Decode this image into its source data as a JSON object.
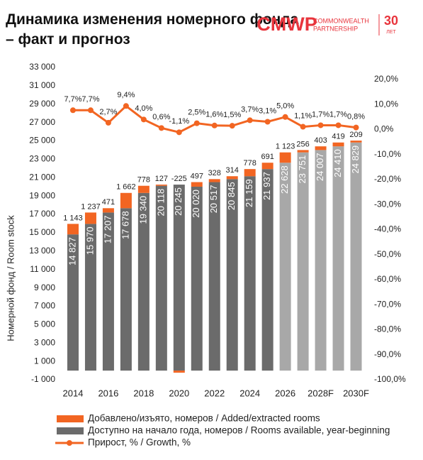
{
  "logo": {
    "mark": "CMWP",
    "line1": "COMMONWEALTH",
    "line2": "PARTNERSHIP",
    "years": "30",
    "years_word": "ЛЕТ"
  },
  "chart_data": {
    "type": "bar-line",
    "title": "Динамика изменения номерного фонда – факт и прогноз",
    "y_label": "Номерной фонд / Room stock",
    "categories": [
      "2014",
      null,
      "2016",
      null,
      "2018",
      null,
      "2020",
      null,
      "2022",
      null,
      "2024",
      null,
      "2026",
      null,
      "2028F",
      null,
      "2030F"
    ],
    "series": [
      {
        "name": "Доступно на начало года, номеров / Rooms available, year-beginning",
        "color": "#6b6b6b",
        "colors": [
          "#6b6b6b",
          "#6b6b6b",
          "#6b6b6b",
          "#6b6b6b",
          "#6b6b6b",
          "#6b6b6b",
          "#6b6b6b",
          "#6b6b6b",
          "#6b6b6b",
          "#6b6b6b",
          "#6b6b6b",
          "#6b6b6b",
          "#a8a8a8",
          "#a8a8a8",
          "#a8a8a8",
          "#a8a8a8",
          "#a8a8a8"
        ],
        "values": [
          14827,
          15970,
          17207,
          17678,
          19340,
          20118,
          20245,
          20020,
          20517,
          20845,
          21159,
          21937,
          22628,
          23751,
          24007,
          24410,
          24829
        ],
        "value_labels": [
          "14 827",
          "15 970",
          "17 207",
          "17 678",
          "19 340",
          "20 118",
          "20 245",
          "20 020",
          "20 517",
          "20 845",
          "21 159",
          "21 937",
          "22 628",
          "23 751",
          "24 007",
          "24 410",
          "24 829"
        ]
      },
      {
        "name": "Добавлено/изъято, номеров / Added/extracted rooms",
        "color": "#f26522",
        "values": [
          1143,
          1237,
          471,
          1662,
          778,
          127,
          -225,
          497,
          328,
          314,
          778,
          691,
          1123,
          256,
          403,
          419,
          209
        ],
        "value_labels": [
          "1 143",
          "1 237",
          "471",
          "1 662",
          "778",
          "127",
          "-225",
          "497",
          "328",
          "314",
          "778",
          "691",
          "1 123",
          "256",
          "403",
          "419",
          "209"
        ]
      },
      {
        "name": "Прирост, % / Growth, %",
        "color": "#f26522",
        "axis": "y2",
        "values": [
          7.7,
          7.7,
          2.7,
          9.4,
          4.0,
          0.6,
          -1.1,
          2.5,
          1.6,
          1.5,
          3.7,
          3.1,
          5.0,
          1.1,
          1.7,
          1.7,
          0.8
        ],
        "value_labels": [
          "7,7%",
          "7,7%",
          "2,7%",
          "9,4%",
          "4,0%",
          "0,6%",
          "-1,1%",
          "2,5%",
          "1,6%",
          "1,5%",
          "3,7%",
          "3,1%",
          "5,0%",
          "1,1%",
          "1,7%",
          "1,7%",
          "0,8%"
        ]
      }
    ],
    "ylim": [
      -1000,
      33000
    ],
    "yticks": [
      {
        "value": -1000,
        "label": "-1 000"
      },
      {
        "value": 1000,
        "label": "1 000"
      },
      {
        "value": 3000,
        "label": "3 000"
      },
      {
        "value": 5000,
        "label": "5 000"
      },
      {
        "value": 7000,
        "label": "7 000"
      },
      {
        "value": 9000,
        "label": "9 000"
      },
      {
        "value": 11000,
        "label": "11 000"
      },
      {
        "value": 13000,
        "label": "13 000"
      },
      {
        "value": 15000,
        "label": "15 000"
      },
      {
        "value": 17000,
        "label": "17 000"
      },
      {
        "value": 19000,
        "label": "19 000"
      },
      {
        "value": 21000,
        "label": "21 000"
      },
      {
        "value": 23000,
        "label": "23 000"
      },
      {
        "value": 25000,
        "label": "25 000"
      },
      {
        "value": 27000,
        "label": "27 000"
      },
      {
        "value": 29000,
        "label": "29 000"
      },
      {
        "value": 31000,
        "label": "31 000"
      },
      {
        "value": 33000,
        "label": "33 000"
      }
    ],
    "y2lim": [
      -100,
      24.8
    ],
    "y2ticks": [
      {
        "value": -100,
        "label": "-100,0%"
      },
      {
        "value": -90,
        "label": "-90,0%"
      },
      {
        "value": -80,
        "label": "-80,0%"
      },
      {
        "value": -70,
        "label": "-70,0%"
      },
      {
        "value": -60,
        "label": "-60,0%"
      },
      {
        "value": -50,
        "label": "-50,0%"
      },
      {
        "value": -40,
        "label": "-40,0%"
      },
      {
        "value": -30,
        "label": "-30,0%"
      },
      {
        "value": -20,
        "label": "-20,0%"
      },
      {
        "value": -10,
        "label": "-10,0%"
      },
      {
        "value": 0,
        "label": "0,0%"
      },
      {
        "value": 10,
        "label": "10,0%"
      },
      {
        "value": 20,
        "label": "20,0%"
      }
    ],
    "grid": false
  }
}
